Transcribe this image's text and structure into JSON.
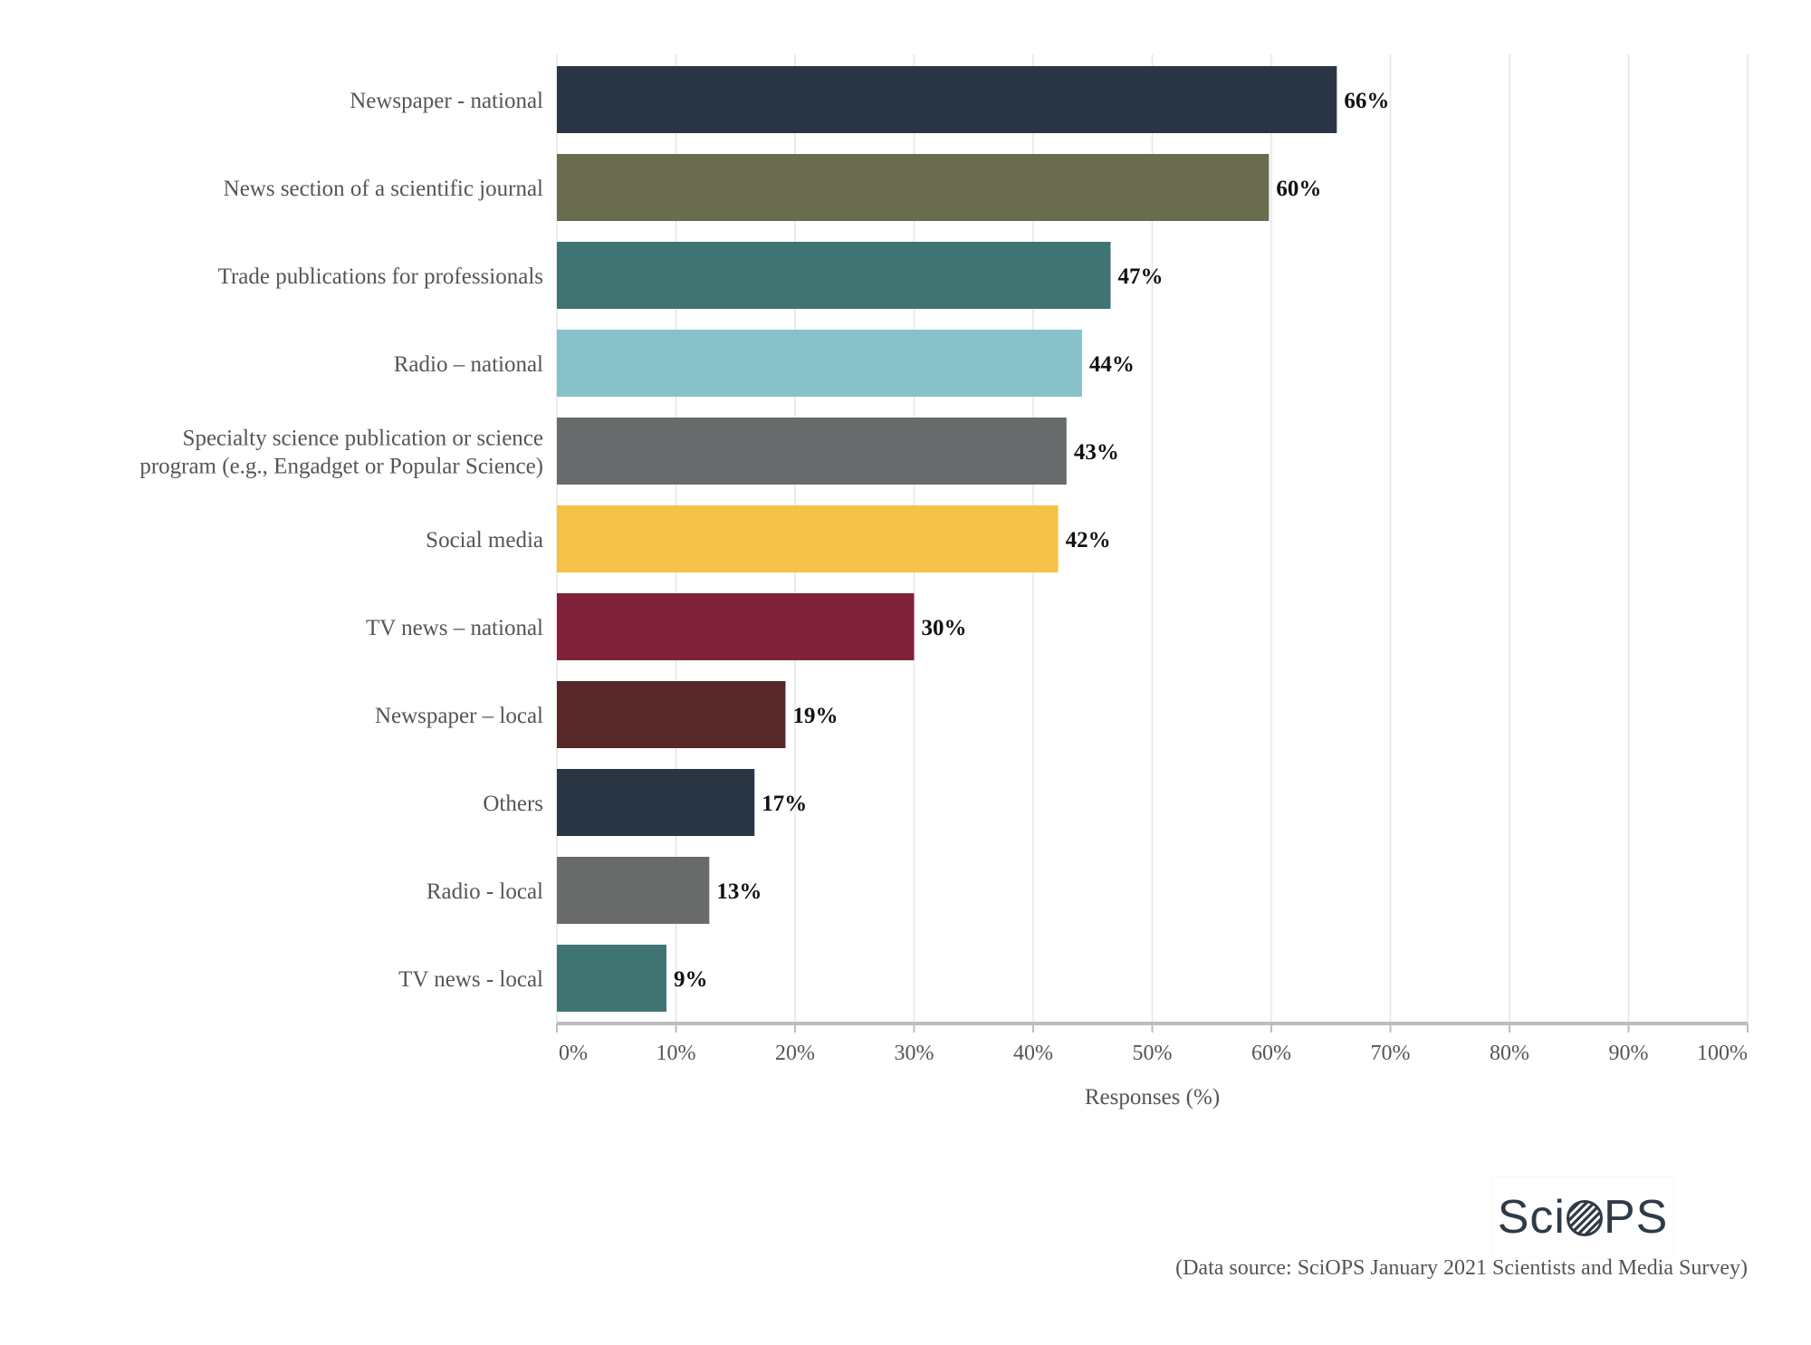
{
  "chart_data": {
    "type": "bar",
    "orientation": "horizontal",
    "categories": [
      "Newspaper - national",
      "News section of a scientific journal",
      "Trade publications for professionals",
      "Radio – national",
      "Specialty science publication or science program (e.g., Engadget or Popular Science)",
      "Social media",
      "TV news – national",
      "Newspaper – local",
      "Others",
      "Radio - local",
      "TV news - local"
    ],
    "category_lines": [
      [
        "Newspaper - national"
      ],
      [
        "News section of a scientific journal"
      ],
      [
        "Trade publications for professionals"
      ],
      [
        "Radio – national"
      ],
      [
        "Specialty science publication or science",
        "program (e.g., Engadget or Popular Science)"
      ],
      [
        "Social media"
      ],
      [
        "TV news – national"
      ],
      [
        "Newspaper – local"
      ],
      [
        "Others"
      ],
      [
        "Radio - local"
      ],
      [
        "TV news - local"
      ]
    ],
    "values": [
      65.5,
      59.8,
      46.5,
      44.1,
      42.8,
      42.1,
      30.0,
      19.2,
      16.6,
      12.8,
      9.2
    ],
    "value_labels": [
      "66%",
      "60%",
      "47%",
      "44%",
      "43%",
      "42%",
      "30%",
      "19%",
      "17%",
      "13%",
      "9%"
    ],
    "colors": [
      "#2b3645",
      "#6a6c50",
      "#3f7473",
      "#89c1c8",
      "#686b6b",
      "#f5c247",
      "#82213a",
      "#56282a",
      "#2b3645",
      "#696b6b",
      "#3f7473"
    ],
    "xlim": [
      0,
      100
    ],
    "xticks": [
      0,
      10,
      20,
      30,
      40,
      50,
      60,
      70,
      80,
      90,
      100
    ],
    "xtick_labels": [
      "0%",
      "10%",
      "20%",
      "30%",
      "40%",
      "50%",
      "60%",
      "70%",
      "80%",
      "90%",
      "100%"
    ],
    "xlabel": "Responses (%)",
    "ylabel": "",
    "title": "",
    "grid": "vertical",
    "legend": "none"
  },
  "logo": {
    "text": "SciOPS",
    "prefix": "Sci",
    "suffix": "PS"
  },
  "source_note": "(Data source: SciOPS January 2021 Scientists and Media Survey)"
}
